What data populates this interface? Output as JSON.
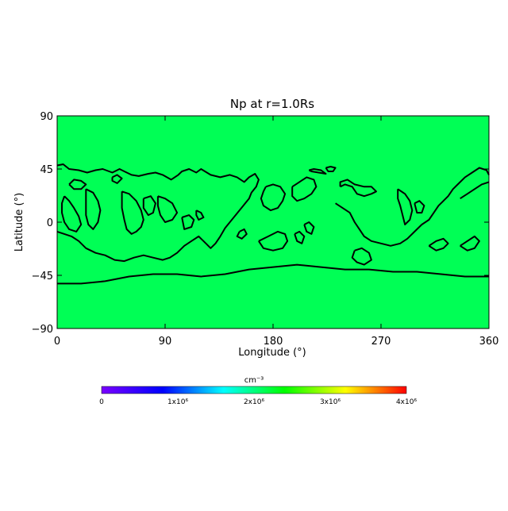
{
  "chart_data": {
    "type": "heatmap",
    "title": "Np at r=1.0Rs",
    "xlabel": "Longitude (°)",
    "ylabel": "Latitude (°)",
    "xlim": [
      0,
      360
    ],
    "ylim": [
      -90,
      90
    ],
    "x_ticks": [
      "0",
      "90",
      "180",
      "270",
      "360"
    ],
    "y_ticks": [
      "90",
      "45",
      "0",
      "−45",
      "−90"
    ],
    "field_value": 2200000,
    "field_color": "#00ff55",
    "colorbar": {
      "unit": "cm⁻³",
      "range": [
        0,
        4000000
      ],
      "tick_labels": [
        "0",
        "1x10⁶",
        "2x10⁶",
        "3x10⁶",
        "4x10⁶"
      ],
      "colors": [
        "#7a00ff",
        "#0000ff",
        "#00ffff",
        "#00ff00",
        "#ffff00",
        "#ff0000"
      ]
    },
    "contour_color": "#000000",
    "contours": [
      [
        [
          0,
          48
        ],
        [
          5,
          49
        ],
        [
          10,
          45
        ],
        [
          18,
          44
        ],
        [
          25,
          42
        ],
        [
          32,
          44
        ],
        [
          38,
          45
        ],
        [
          46,
          42
        ],
        [
          52,
          45
        ],
        [
          56,
          43
        ],
        [
          62,
          40
        ],
        [
          68,
          39
        ],
        [
          76,
          41
        ],
        [
          82,
          42
        ],
        [
          88,
          40
        ],
        [
          95,
          36
        ],
        [
          101,
          40
        ],
        [
          104,
          43
        ],
        [
          110,
          45
        ],
        [
          116,
          42
        ],
        [
          120,
          45
        ],
        [
          128,
          40
        ],
        [
          136,
          38
        ],
        [
          144,
          40
        ],
        [
          150,
          38
        ],
        [
          156,
          34
        ],
        [
          160,
          38
        ],
        [
          165,
          41
        ],
        [
          168,
          36
        ],
        [
          166,
          30
        ],
        [
          162,
          25
        ],
        [
          160,
          20
        ],
        [
          156,
          15
        ],
        [
          152,
          10
        ],
        [
          148,
          5
        ],
        [
          144,
          0
        ],
        [
          140,
          -5
        ],
        [
          136,
          -12
        ],
        [
          132,
          -18
        ],
        [
          128,
          -22
        ],
        [
          124,
          -18
        ],
        [
          118,
          -12
        ],
        [
          112,
          -16
        ],
        [
          106,
          -20
        ],
        [
          100,
          -26
        ],
        [
          94,
          -30
        ],
        [
          88,
          -32
        ],
        [
          80,
          -30
        ],
        [
          72,
          -28
        ],
        [
          64,
          -30
        ],
        [
          56,
          -33
        ],
        [
          48,
          -32
        ],
        [
          40,
          -28
        ],
        [
          32,
          -26
        ],
        [
          24,
          -22
        ],
        [
          18,
          -16
        ],
        [
          12,
          -12
        ],
        [
          6,
          -10
        ],
        [
          0,
          -8
        ]
      ],
      [
        [
          10,
          32
        ],
        [
          14,
          36
        ],
        [
          20,
          35
        ],
        [
          24,
          32
        ],
        [
          20,
          28
        ],
        [
          14,
          28
        ],
        [
          10,
          32
        ]
      ],
      [
        [
          6,
          22
        ],
        [
          10,
          18
        ],
        [
          14,
          12
        ],
        [
          18,
          5
        ],
        [
          20,
          -2
        ],
        [
          16,
          -8
        ],
        [
          10,
          -6
        ],
        [
          6,
          0
        ],
        [
          4,
          8
        ],
        [
          4,
          16
        ],
        [
          6,
          22
        ]
      ],
      [
        [
          24,
          28
        ],
        [
          30,
          25
        ],
        [
          34,
          18
        ],
        [
          36,
          10
        ],
        [
          34,
          0
        ],
        [
          30,
          -6
        ],
        [
          26,
          -2
        ],
        [
          24,
          6
        ],
        [
          24,
          16
        ],
        [
          24,
          28
        ]
      ],
      [
        [
          46,
          38
        ],
        [
          50,
          40
        ],
        [
          54,
          37
        ],
        [
          50,
          33
        ],
        [
          46,
          35
        ],
        [
          46,
          38
        ]
      ],
      [
        [
          54,
          26
        ],
        [
          60,
          24
        ],
        [
          66,
          18
        ],
        [
          70,
          10
        ],
        [
          72,
          2
        ],
        [
          70,
          -4
        ],
        [
          66,
          -8
        ],
        [
          62,
          -10
        ],
        [
          58,
          -6
        ],
        [
          56,
          2
        ],
        [
          54,
          12
        ],
        [
          54,
          26
        ]
      ],
      [
        [
          72,
          20
        ],
        [
          78,
          22
        ],
        [
          82,
          16
        ],
        [
          80,
          8
        ],
        [
          76,
          6
        ],
        [
          72,
          12
        ],
        [
          72,
          20
        ]
      ],
      [
        [
          84,
          22
        ],
        [
          90,
          20
        ],
        [
          96,
          16
        ],
        [
          100,
          8
        ],
        [
          96,
          2
        ],
        [
          90,
          0
        ],
        [
          86,
          6
        ],
        [
          84,
          14
        ],
        [
          84,
          22
        ]
      ],
      [
        [
          104,
          4
        ],
        [
          110,
          6
        ],
        [
          114,
          2
        ],
        [
          112,
          -4
        ],
        [
          106,
          -6
        ],
        [
          104,
          4
        ]
      ],
      [
        [
          116,
          10
        ],
        [
          120,
          8
        ],
        [
          122,
          4
        ],
        [
          118,
          2
        ],
        [
          116,
          6
        ],
        [
          116,
          10
        ]
      ],
      [
        [
          152,
          -8
        ],
        [
          156,
          -6
        ],
        [
          158,
          -10
        ],
        [
          154,
          -14
        ],
        [
          150,
          -12
        ],
        [
          152,
          -8
        ]
      ],
      [
        [
          168,
          -16
        ],
        [
          176,
          -12
        ],
        [
          184,
          -8
        ],
        [
          190,
          -10
        ],
        [
          192,
          -16
        ],
        [
          188,
          -22
        ],
        [
          180,
          -24
        ],
        [
          172,
          -22
        ],
        [
          168,
          -16
        ]
      ],
      [
        [
          198,
          -10
        ],
        [
          202,
          -8
        ],
        [
          206,
          -12
        ],
        [
          204,
          -18
        ],
        [
          200,
          -16
        ],
        [
          198,
          -10
        ]
      ],
      [
        [
          174,
          30
        ],
        [
          180,
          32
        ],
        [
          186,
          30
        ],
        [
          190,
          24
        ],
        [
          188,
          18
        ],
        [
          184,
          12
        ],
        [
          178,
          10
        ],
        [
          172,
          14
        ],
        [
          170,
          20
        ],
        [
          172,
          26
        ],
        [
          174,
          30
        ]
      ],
      [
        [
          196,
          30
        ],
        [
          202,
          34
        ],
        [
          208,
          38
        ],
        [
          214,
          36
        ],
        [
          216,
          30
        ],
        [
          212,
          24
        ],
        [
          206,
          20
        ],
        [
          200,
          18
        ],
        [
          196,
          22
        ],
        [
          196,
          30
        ]
      ],
      [
        [
          206,
          -2
        ],
        [
          210,
          0
        ],
        [
          214,
          -4
        ],
        [
          212,
          -10
        ],
        [
          208,
          -8
        ],
        [
          206,
          -2
        ]
      ],
      [
        [
          210,
          44
        ],
        [
          214,
          45
        ],
        [
          220,
          44
        ],
        [
          224,
          41
        ],
        [
          218,
          42
        ],
        [
          212,
          43
        ],
        [
          210,
          44
        ]
      ],
      [
        [
          224,
          46
        ],
        [
          228,
          47
        ],
        [
          232,
          46
        ],
        [
          230,
          43
        ],
        [
          226,
          43
        ],
        [
          224,
          46
        ]
      ],
      [
        [
          232,
          16
        ],
        [
          238,
          12
        ],
        [
          244,
          8
        ],
        [
          248,
          0
        ],
        [
          252,
          -6
        ],
        [
          256,
          -12
        ],
        [
          262,
          -16
        ],
        [
          270,
          -18
        ],
        [
          278,
          -20
        ],
        [
          286,
          -18
        ],
        [
          292,
          -14
        ],
        [
          298,
          -8
        ],
        [
          304,
          -2
        ],
        [
          310,
          2
        ],
        [
          314,
          8
        ],
        [
          318,
          14
        ],
        [
          322,
          18
        ],
        [
          326,
          22
        ],
        [
          330,
          28
        ],
        [
          334,
          32
        ],
        [
          340,
          38
        ],
        [
          346,
          42
        ],
        [
          352,
          46
        ],
        [
          358,
          44
        ],
        [
          360,
          40
        ]
      ],
      [
        [
          236,
          30
        ],
        [
          240,
          32
        ],
        [
          246,
          30
        ],
        [
          250,
          24
        ],
        [
          256,
          22
        ],
        [
          262,
          24
        ],
        [
          266,
          26
        ],
        [
          262,
          30
        ],
        [
          256,
          30
        ],
        [
          248,
          32
        ],
        [
          242,
          36
        ],
        [
          236,
          34
        ],
        [
          236,
          30
        ]
      ],
      [
        [
          248,
          -24
        ],
        [
          254,
          -22
        ],
        [
          260,
          -26
        ],
        [
          262,
          -32
        ],
        [
          256,
          -36
        ],
        [
          250,
          -34
        ],
        [
          246,
          -30
        ],
        [
          248,
          -24
        ]
      ],
      [
        [
          284,
          28
        ],
        [
          290,
          24
        ],
        [
          294,
          18
        ],
        [
          296,
          10
        ],
        [
          294,
          2
        ],
        [
          290,
          -2
        ],
        [
          288,
          6
        ],
        [
          286,
          14
        ],
        [
          284,
          20
        ],
        [
          284,
          28
        ]
      ],
      [
        [
          298,
          16
        ],
        [
          302,
          18
        ],
        [
          306,
          14
        ],
        [
          304,
          8
        ],
        [
          300,
          8
        ],
        [
          298,
          16
        ]
      ],
      [
        [
          310,
          -20
        ],
        [
          316,
          -16
        ],
        [
          322,
          -14
        ],
        [
          326,
          -18
        ],
        [
          322,
          -22
        ],
        [
          316,
          -24
        ],
        [
          310,
          -20
        ]
      ],
      [
        [
          336,
          20
        ],
        [
          342,
          24
        ],
        [
          348,
          28
        ],
        [
          354,
          32
        ],
        [
          360,
          34
        ]
      ],
      [
        [
          336,
          -20
        ],
        [
          342,
          -16
        ],
        [
          348,
          -12
        ],
        [
          352,
          -16
        ],
        [
          348,
          -22
        ],
        [
          342,
          -24
        ],
        [
          336,
          -20
        ]
      ],
      [
        [
          0,
          -52
        ],
        [
          20,
          -52
        ],
        [
          40,
          -50
        ],
        [
          60,
          -46
        ],
        [
          80,
          -44
        ],
        [
          100,
          -44
        ],
        [
          120,
          -46
        ],
        [
          140,
          -44
        ],
        [
          160,
          -40
        ],
        [
          180,
          -38
        ],
        [
          200,
          -36
        ],
        [
          220,
          -38
        ],
        [
          240,
          -40
        ],
        [
          260,
          -40
        ],
        [
          280,
          -42
        ],
        [
          300,
          -42
        ],
        [
          320,
          -44
        ],
        [
          340,
          -46
        ],
        [
          360,
          -46
        ]
      ]
    ]
  }
}
